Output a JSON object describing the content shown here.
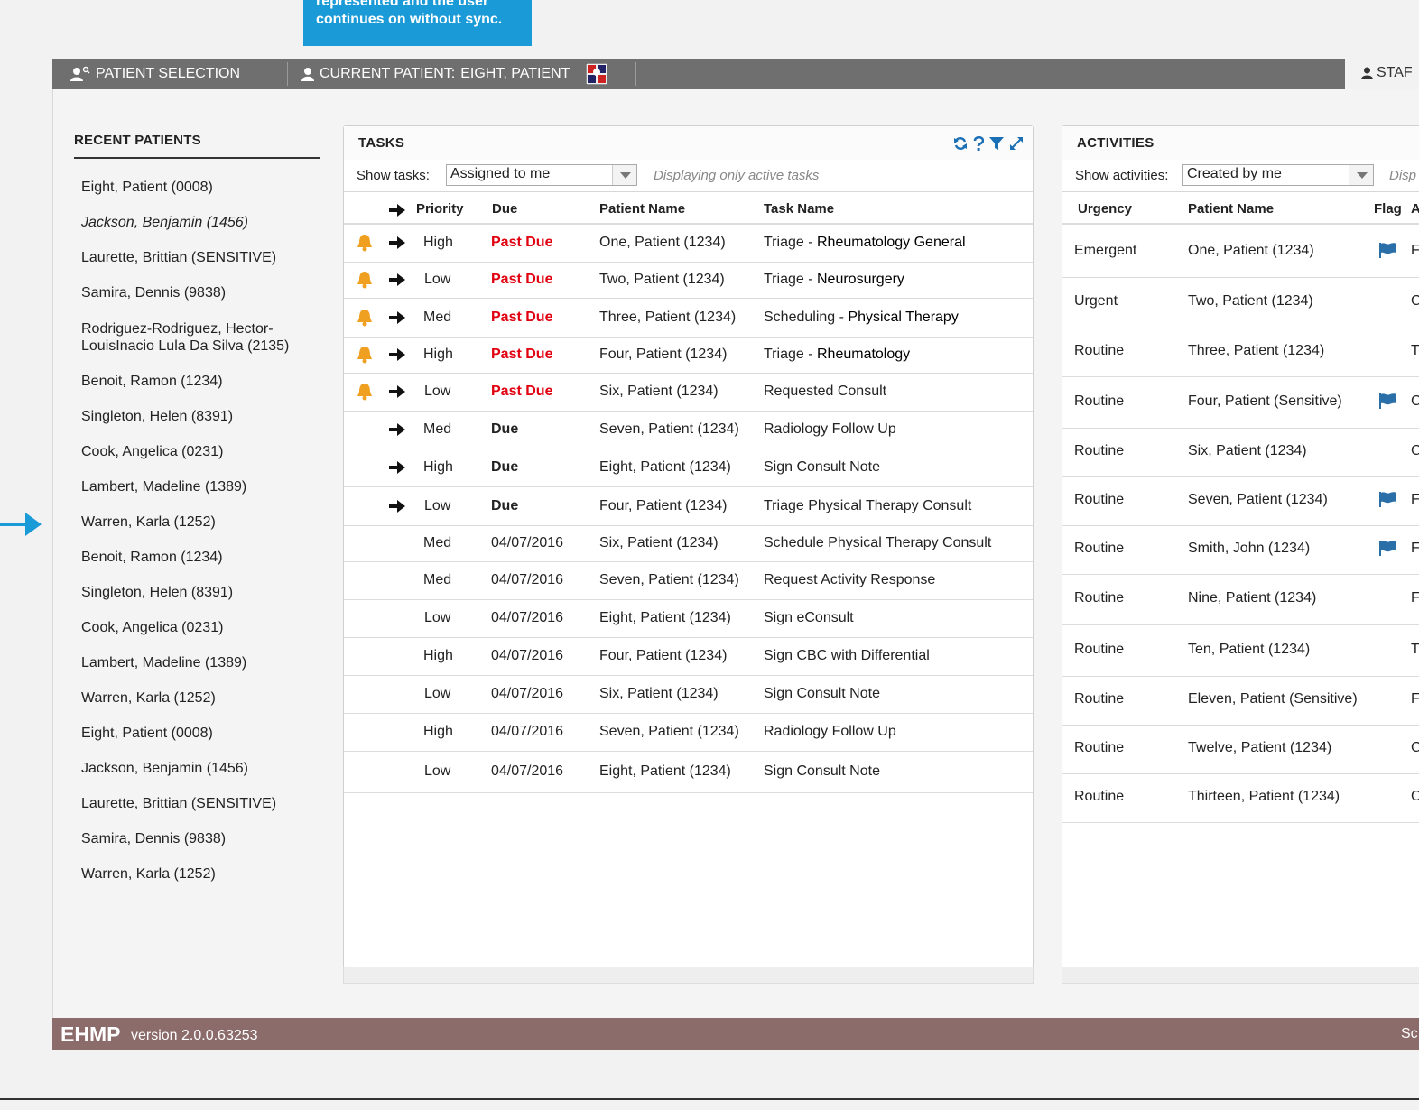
{
  "callout": {
    "line1": "represented and the user",
    "line2": "continues on without sync."
  },
  "topbar": {
    "patient_selection": "PATIENT SELECTION",
    "current_patient_label": "CURRENT PATIENT:",
    "current_patient_name": "EIGHT, PATIENT",
    "staff": "STAF"
  },
  "recent": {
    "title": "RECENT PATIENTS",
    "items": [
      "Eight, Patient (0008)",
      "Jackson, Benjamin (1456)",
      "Laurette, Brittian (SENSITIVE)",
      "Samira, Dennis (9838)",
      "Rodriguez-Rodriguez, Hector-\nLouisInacio Lula Da Silva (2135)",
      "Benoit, Ramon (1234)",
      "Singleton, Helen (8391)",
      "Cook, Angelica (0231)",
      "Lambert, Madeline (1389)",
      "Warren, Karla (1252)",
      "Benoit, Ramon (1234)",
      "Singleton, Helen (8391)",
      "Cook, Angelica (0231)",
      "Lambert, Madeline (1389)",
      "Warren, Karla (1252)",
      "Eight, Patient (0008)",
      "Jackson, Benjamin (1456)",
      "Laurette, Brittian (SENSITIVE)",
      "Samira, Dennis (9838)",
      "Warren, Karla (1252)"
    ]
  },
  "tasks": {
    "title": "TASKS",
    "show_label": "Show tasks:",
    "show_value": "Assigned to me",
    "note": "Displaying only active tasks",
    "columns": {
      "priority": "Priority",
      "due": "Due",
      "patient": "Patient Name",
      "task": "Task Name"
    },
    "rows": [
      {
        "bell": true,
        "arrow": true,
        "priority": "High",
        "due": "Past Due",
        "due_style": "red",
        "patient": "One, Patient (1234)",
        "task_prefix": "Triage - ",
        "task_main": "Rheumatology General"
      },
      {
        "bell": true,
        "arrow": true,
        "priority": "Low",
        "due": "Past Due",
        "due_style": "red",
        "patient": "Two, Patient (1234)",
        "task_prefix": "Triage - ",
        "task_main": "Neurosurgery"
      },
      {
        "bell": true,
        "arrow": true,
        "priority": "Med",
        "due": "Past Due",
        "due_style": "red",
        "patient": "Three, Patient (1234)",
        "task_prefix": "Scheduling - ",
        "task_main": "Physical Therapy"
      },
      {
        "bell": true,
        "arrow": true,
        "priority": "High",
        "due": "Past Due",
        "due_style": "red",
        "patient": "Four, Patient (1234)",
        "task_prefix": "Triage - ",
        "task_main": "Rheumatology"
      },
      {
        "bell": true,
        "arrow": true,
        "priority": "Low",
        "due": "Past Due",
        "due_style": "red",
        "patient": "Six, Patient (1234)",
        "task_prefix": "Requested Consult",
        "task_main": ""
      },
      {
        "bell": false,
        "arrow": true,
        "priority": "Med",
        "due": "Due",
        "due_style": "bold",
        "patient": "Seven, Patient (1234)",
        "task_prefix": "Radiology Follow Up",
        "task_main": ""
      },
      {
        "bell": false,
        "arrow": true,
        "priority": "High",
        "due": "Due",
        "due_style": "bold",
        "patient": "Eight, Patient (1234)",
        "task_prefix": "Sign Consult Note",
        "task_main": ""
      },
      {
        "bell": false,
        "arrow": true,
        "priority": "Low",
        "due": "Due",
        "due_style": "bold",
        "patient": "Four, Patient (1234)",
        "task_prefix": "Triage Physical Therapy Consult",
        "task_main": ""
      },
      {
        "bell": false,
        "arrow": false,
        "priority": "Med",
        "due": "04/07/2016",
        "due_style": "",
        "patient": "Six, Patient (1234)",
        "task_prefix": "Schedule Physical Therapy Consult",
        "task_main": ""
      },
      {
        "bell": false,
        "arrow": false,
        "priority": "Med",
        "due": "04/07/2016",
        "due_style": "",
        "patient": "Seven, Patient (1234)",
        "task_prefix": "Request Activity Response",
        "task_main": ""
      },
      {
        "bell": false,
        "arrow": false,
        "priority": "Low",
        "due": "04/07/2016",
        "due_style": "",
        "patient": "Eight, Patient (1234)",
        "task_prefix": "Sign eConsult",
        "task_main": ""
      },
      {
        "bell": false,
        "arrow": false,
        "priority": "High",
        "due": "04/07/2016",
        "due_style": "",
        "patient": "Four, Patient (1234)",
        "task_prefix": "Sign CBC with Differential",
        "task_main": ""
      },
      {
        "bell": false,
        "arrow": false,
        "priority": "Low",
        "due": "04/07/2016",
        "due_style": "",
        "patient": "Six, Patient (1234)",
        "task_prefix": "Sign Consult Note",
        "task_main": ""
      },
      {
        "bell": false,
        "arrow": false,
        "priority": "High",
        "due": "04/07/2016",
        "due_style": "",
        "patient": "Seven, Patient (1234)",
        "task_prefix": "Radiology Follow Up",
        "task_main": ""
      },
      {
        "bell": false,
        "arrow": false,
        "priority": "Low",
        "due": "04/07/2016",
        "due_style": "",
        "patient": "Eight, Patient (1234)",
        "task_prefix": "Sign Consult Note",
        "task_main": ""
      }
    ]
  },
  "activities": {
    "title": "ACTIVITIES",
    "show_label": "Show activities:",
    "show_value": "Created by me",
    "note": "Disp",
    "columns": {
      "urgency": "Urgency",
      "patient": "Patient Name",
      "flag": "Flag",
      "next": "A"
    },
    "rows": [
      {
        "urgency": "Emergent",
        "patient": "One, Patient (1234)",
        "flag": true,
        "tail": "F"
      },
      {
        "urgency": "Urgent",
        "patient": "Two, Patient (1234)",
        "flag": false,
        "tail": "C"
      },
      {
        "urgency": "Routine",
        "patient": "Three, Patient (1234)",
        "flag": false,
        "tail": "T"
      },
      {
        "urgency": "Routine",
        "patient": "Four, Patient (Sensitive)",
        "flag": true,
        "tail": "C"
      },
      {
        "urgency": "Routine",
        "patient": "Six, Patient (1234)",
        "flag": false,
        "tail": "C"
      },
      {
        "urgency": "Routine",
        "patient": "Seven, Patient (1234)",
        "flag": true,
        "tail": "F"
      },
      {
        "urgency": "Routine",
        "patient": "Smith, John (1234)",
        "flag": true,
        "tail": "F"
      },
      {
        "urgency": "Routine",
        "patient": "Nine, Patient (1234)",
        "flag": false,
        "tail": "F"
      },
      {
        "urgency": "Routine",
        "patient": "Ten, Patient (1234)",
        "flag": false,
        "tail": "T"
      },
      {
        "urgency": "Routine",
        "patient": "Eleven, Patient (Sensitive)",
        "flag": false,
        "tail": "F"
      },
      {
        "urgency": "Routine",
        "patient": "Twelve, Patient (1234)",
        "flag": false,
        "tail": "C"
      },
      {
        "urgency": "Routine",
        "patient": "Thirteen, Patient (1234)",
        "flag": false,
        "tail": "C"
      }
    ]
  },
  "footer": {
    "brand": "EHMP",
    "version": "version 2.0.0.63253",
    "right": "Sc"
  },
  "colors": {
    "accent": "#1a9ad6",
    "topbar": "#6f6f6f",
    "footer": "#8c6b6b",
    "past_due": "#e1000f",
    "bell": "#f0a020",
    "flag": "#2a6fa8"
  },
  "icons": [
    "user-search-icon",
    "user-icon",
    "patient-photo-icon",
    "staff-icon",
    "refresh-icon",
    "help-icon",
    "filter-icon",
    "expand-icon",
    "bell-icon",
    "arrow-right-icon",
    "flag-icon",
    "dropdown-caret-icon"
  ]
}
